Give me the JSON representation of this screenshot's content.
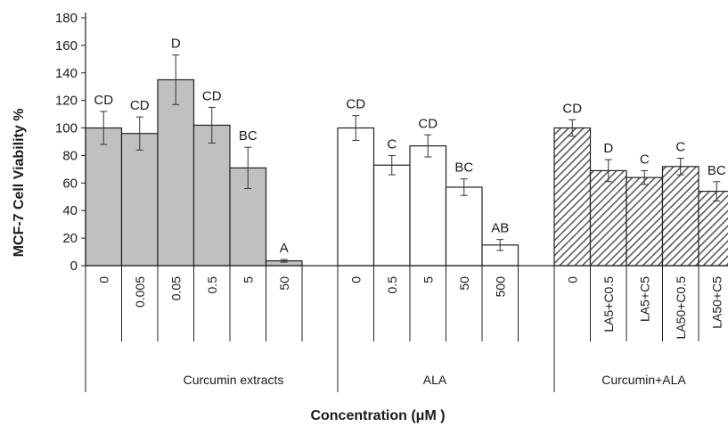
{
  "chart_data": {
    "type": "bar",
    "ylabel": "MCF-7 Cell Viability %",
    "xlabel": "Concentration (μM )",
    "ylim": [
      0,
      180
    ],
    "yticks": [
      "0",
      "20",
      "40",
      "60",
      "80",
      "100",
      "120",
      "140",
      "160",
      "180"
    ],
    "groups": [
      {
        "name": "Curcumin extracts",
        "fill": "gray",
        "categories": [
          "0",
          "0.005",
          "0.05",
          "0.5",
          "5",
          "50"
        ],
        "values": [
          100,
          96,
          135,
          102,
          71,
          3.5
        ],
        "errors": [
          12,
          12,
          18,
          13,
          15,
          1
        ],
        "labels": [
          "CD",
          "CD",
          "D",
          "CD",
          "BC",
          "A"
        ]
      },
      {
        "name": "ALA",
        "fill": "white",
        "categories": [
          "0",
          "0.5",
          "5",
          "50",
          "500"
        ],
        "values": [
          100,
          73,
          87,
          57,
          15
        ],
        "errors": [
          9,
          7,
          8,
          6,
          4
        ],
        "labels": [
          "CD",
          "C",
          "CD",
          "BC",
          "AB"
        ]
      },
      {
        "name": "Curcumin+ALA",
        "fill": "hatched",
        "categories": [
          "0",
          "LA5+C0.5",
          "LA5+C5",
          "LA50+C0.5",
          "LA50+C5"
        ],
        "values": [
          100,
          69,
          64,
          72,
          54
        ],
        "errors": [
          6,
          8,
          5,
          6,
          7
        ],
        "labels": [
          "CD",
          "D",
          "C",
          "C",
          "BC"
        ]
      }
    ],
    "colors": {
      "gray": "#c0c0c0",
      "white": "#ffffff",
      "hatch": "#555555",
      "stroke": "#222222"
    }
  }
}
